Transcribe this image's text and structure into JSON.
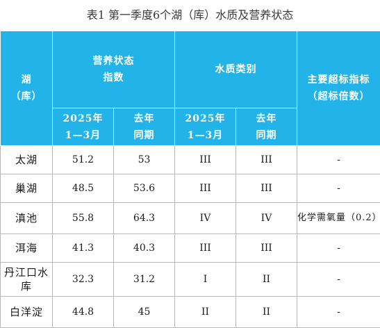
{
  "title": "表1 第一季度6个湖（库）水质及营养状态",
  "headers": {
    "lake": [
      "湖",
      "（库）"
    ],
    "trophic_index": [
      "营养状态",
      "指数"
    ],
    "water_class": "水质类别",
    "main_exceed": [
      "主要超标指标",
      "（超标倍数）"
    ],
    "period_current": [
      "2025年",
      "1—3月"
    ],
    "period_last": [
      "去年",
      "同期"
    ]
  },
  "rows": [
    {
      "name": "太湖",
      "ti_current": "51.2",
      "ti_last": "53",
      "wq_current": "III",
      "wq_last": "III",
      "exceed": "-"
    },
    {
      "name": "巢湖",
      "ti_current": "48.5",
      "ti_last": "53.6",
      "wq_current": "III",
      "wq_last": "III",
      "exceed": "-"
    },
    {
      "name": "滇池",
      "ti_current": "55.8",
      "ti_last": "64.3",
      "wq_current": "IV",
      "wq_last": "IV",
      "exceed": "化学需氧量（0.2）"
    },
    {
      "name": "洱海",
      "ti_current": "41.3",
      "ti_last": "40.3",
      "wq_current": "III",
      "wq_last": "III",
      "exceed": "-"
    },
    {
      "name": "丹江口水库",
      "ti_current": "32.3",
      "ti_last": "31.2",
      "wq_current": "I",
      "wq_last": "II",
      "exceed": "-"
    },
    {
      "name": "白洋淀",
      "ti_current": "44.8",
      "ti_last": "45",
      "wq_current": "II",
      "wq_last": "II",
      "exceed": "-"
    }
  ]
}
